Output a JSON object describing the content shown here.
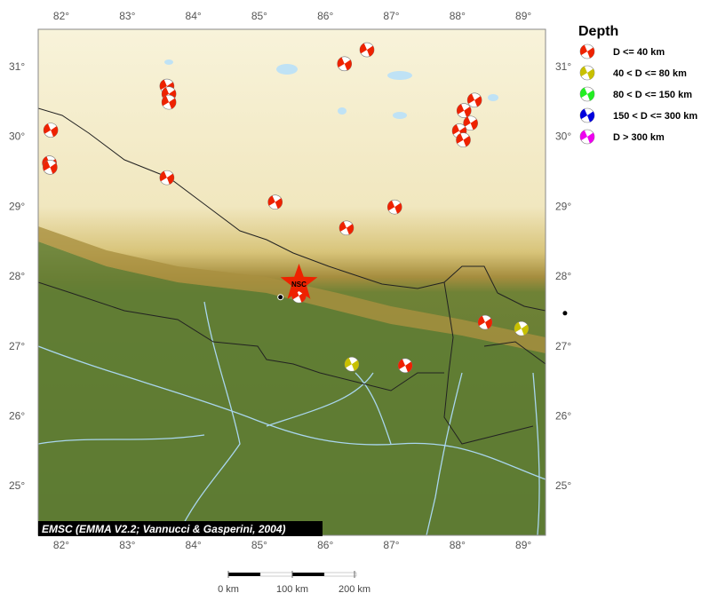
{
  "map": {
    "lon_range": [
      81.65,
      89.33
    ],
    "lat_range": [
      24.3,
      31.53
    ],
    "lon_ticks": [
      82,
      83,
      84,
      85,
      86,
      87,
      88,
      89
    ],
    "lat_ticks": [
      25,
      26,
      27,
      28,
      29,
      30,
      31
    ],
    "degree_symbol": "°",
    "credit": "EMSC (EMMA V2.2; Vannucci & Gasperini, 2004)",
    "terrain_colors": {
      "highland": "#f6efcf",
      "front": "#b59a3c",
      "lowland": "#5b7a34",
      "water": "#a9d6ee"
    }
  },
  "legend": {
    "title": "Depth",
    "items": [
      {
        "label": "D <= 40 km",
        "color": "#ee2200"
      },
      {
        "label": "40 < D <= 80 km",
        "color": "#c8c000"
      },
      {
        "label": "80 < D <= 150 km",
        "color": "#22ee22"
      },
      {
        "label": "150 < D <= 300 km",
        "color": "#0000dd"
      },
      {
        "label": "D > 300 km",
        "color": "#ee00ee"
      }
    ]
  },
  "scale_bar": {
    "labels": [
      "0 km",
      "100 km",
      "200 km"
    ]
  },
  "station": {
    "label": "NSC",
    "lon": 85.6,
    "lat": 27.9,
    "color": "#ee2200"
  },
  "cities": [
    {
      "lon": 85.32,
      "lat": 27.7
    },
    {
      "lon": 89.63,
      "lat": 27.47
    }
  ],
  "events": [
    {
      "lon": 81.84,
      "lat": 30.09,
      "depth_class": 0
    },
    {
      "lon": 81.82,
      "lat": 29.62,
      "depth_class": 0
    },
    {
      "lon": 81.83,
      "lat": 29.56,
      "depth_class": 0
    },
    {
      "lon": 83.6,
      "lat": 30.72,
      "depth_class": 0
    },
    {
      "lon": 83.63,
      "lat": 30.61,
      "depth_class": 0
    },
    {
      "lon": 83.63,
      "lat": 30.49,
      "depth_class": 0
    },
    {
      "lon": 83.6,
      "lat": 29.41,
      "depth_class": 0
    },
    {
      "lon": 85.24,
      "lat": 29.06,
      "depth_class": 0
    },
    {
      "lon": 86.29,
      "lat": 31.04,
      "depth_class": 0
    },
    {
      "lon": 86.63,
      "lat": 31.24,
      "depth_class": 0
    },
    {
      "lon": 86.32,
      "lat": 28.69,
      "depth_class": 0
    },
    {
      "lon": 87.05,
      "lat": 28.99,
      "depth_class": 0
    },
    {
      "lon": 88.26,
      "lat": 30.52,
      "depth_class": 0
    },
    {
      "lon": 88.1,
      "lat": 30.37,
      "depth_class": 0
    },
    {
      "lon": 88.2,
      "lat": 30.19,
      "depth_class": 0
    },
    {
      "lon": 88.03,
      "lat": 30.08,
      "depth_class": 0
    },
    {
      "lon": 88.09,
      "lat": 29.95,
      "depth_class": 0
    },
    {
      "lon": 88.42,
      "lat": 27.34,
      "depth_class": 0
    },
    {
      "lon": 85.6,
      "lat": 27.72,
      "depth_class": 0
    },
    {
      "lon": 86.4,
      "lat": 26.74,
      "depth_class": 1
    },
    {
      "lon": 87.21,
      "lat": 26.72,
      "depth_class": 0
    },
    {
      "lon": 88.97,
      "lat": 27.25,
      "depth_class": 1
    }
  ]
}
